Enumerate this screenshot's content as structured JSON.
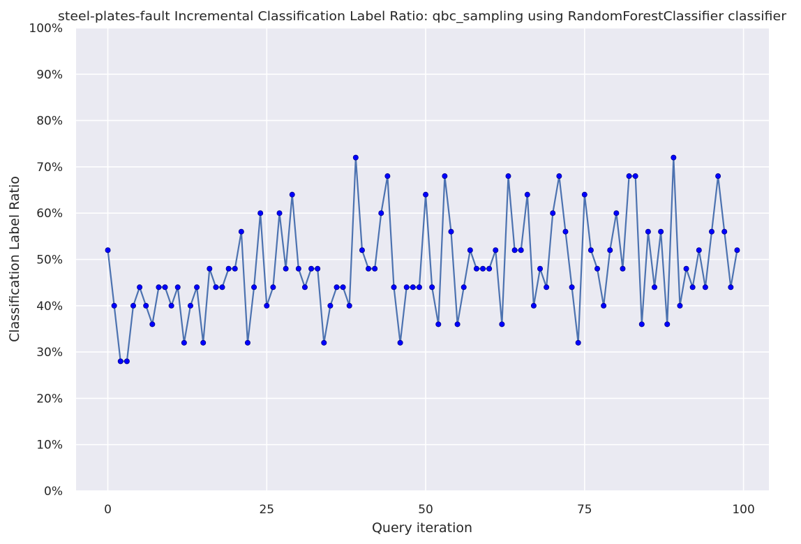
{
  "chart_data": {
    "type": "line",
    "title": "steel-plates-fault Incremental Classification Label Ratio: qbc_sampling using RandomForestClassifier classifier",
    "xlabel": "Query iteration",
    "ylabel": "Classification Label Ratio",
    "xlim": [
      -5,
      104
    ],
    "ylim": [
      0,
      1
    ],
    "x_ticks": [
      0,
      25,
      50,
      75,
      100
    ],
    "y_ticks": [
      0,
      0.1,
      0.2,
      0.3,
      0.4,
      0.5,
      0.6,
      0.7,
      0.8,
      0.9,
      1.0
    ],
    "y_tick_labels": [
      "0%",
      "10%",
      "20%",
      "30%",
      "40%",
      "50%",
      "60%",
      "70%",
      "80%",
      "90%",
      "100%"
    ],
    "grid": true,
    "colors": {
      "background": "#eaeaf2",
      "grid": "#ffffff",
      "line": "#4c72b0",
      "marker": "#0000ff"
    },
    "series": [
      {
        "x": [
          0,
          1,
          2,
          3,
          4,
          5,
          6,
          7,
          8,
          9,
          10,
          11,
          12,
          13,
          14,
          15,
          16,
          17,
          18,
          19,
          20,
          21,
          22,
          23,
          24,
          25,
          26,
          27,
          28,
          29,
          30,
          31,
          32,
          33,
          34,
          35,
          36,
          37,
          38,
          39,
          40,
          41,
          42,
          43,
          44,
          45,
          46,
          47,
          48,
          49,
          50,
          51,
          52,
          53,
          54,
          55,
          56,
          57,
          58,
          59,
          60,
          61,
          62,
          63,
          64,
          65,
          66,
          67,
          68,
          69,
          70,
          71,
          72,
          73,
          74,
          75,
          76,
          77,
          78,
          79,
          80,
          81,
          82,
          83,
          84,
          85,
          86,
          87,
          88,
          89,
          90,
          91,
          92,
          93,
          94,
          95,
          96,
          97,
          98,
          99
        ],
        "values": [
          0.52,
          0.4,
          0.28,
          0.28,
          0.4,
          0.44,
          0.4,
          0.36,
          0.44,
          0.44,
          0.4,
          0.44,
          0.32,
          0.4,
          0.44,
          0.32,
          0.48,
          0.44,
          0.44,
          0.48,
          0.48,
          0.56,
          0.32,
          0.44,
          0.6,
          0.4,
          0.44,
          0.6,
          0.48,
          0.64,
          0.48,
          0.44,
          0.48,
          0.48,
          0.32,
          0.4,
          0.44,
          0.44,
          0.4,
          0.72,
          0.52,
          0.48,
          0.48,
          0.6,
          0.68,
          0.44,
          0.32,
          0.44,
          0.44,
          0.44,
          0.64,
          0.44,
          0.36,
          0.68,
          0.56,
          0.36,
          0.44,
          0.52,
          0.48,
          0.48,
          0.48,
          0.52,
          0.36,
          0.68,
          0.52,
          0.52,
          0.64,
          0.4,
          0.48,
          0.44,
          0.6,
          0.68,
          0.56,
          0.44,
          0.32,
          0.64,
          0.52,
          0.48,
          0.4,
          0.52,
          0.6,
          0.48,
          0.68,
          0.68,
          0.36,
          0.56,
          0.44,
          0.56,
          0.36,
          0.72,
          0.4,
          0.48,
          0.44,
          0.52,
          0.44,
          0.56,
          0.68,
          0.56,
          0.44,
          0.52
        ]
      }
    ]
  }
}
